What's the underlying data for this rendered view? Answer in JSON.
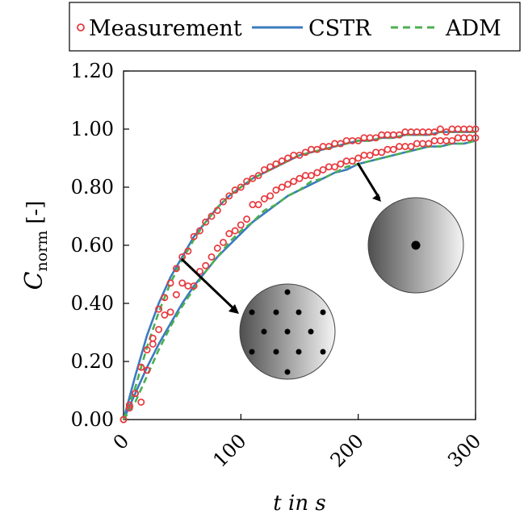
{
  "chart_data": {
    "type": "line",
    "xlabel": "t in s",
    "ylabel": "C_norm [-]",
    "ylabel_main": "C",
    "ylabel_sub": "norm",
    "ylabel_unit": "[-]",
    "xlim": [
      0,
      300
    ],
    "ylim": [
      0,
      1.2
    ],
    "xticks": [
      0,
      100,
      200,
      300
    ],
    "xtick_labels": [
      "0",
      "100",
      "200",
      "300"
    ],
    "yticks": [
      0,
      0.2,
      0.4,
      0.6,
      0.8,
      1.0,
      1.2
    ],
    "ytick_labels": [
      "0.00",
      "0.20",
      "0.40",
      "0.60",
      "0.80",
      "1.00",
      "1.20"
    ],
    "grid": false,
    "legend_position": "top (outside plot)",
    "legend": [
      "Measurement",
      "CSTR",
      "ADM"
    ],
    "colors": {
      "measurement": "#e8383d",
      "cstr": "#3b7bbf",
      "adm": "#4caf50"
    },
    "series": [
      {
        "name": "Measurement",
        "style": "markers",
        "curve": "single inlet",
        "x": [
          0,
          5,
          10,
          15,
          20,
          25,
          30,
          35,
          40,
          45,
          50,
          55,
          60,
          65,
          70,
          75,
          80,
          85,
          90,
          95,
          100,
          105,
          110,
          115,
          120,
          125,
          130,
          135,
          140,
          145,
          150,
          155,
          160,
          165,
          170,
          175,
          180,
          185,
          190,
          195,
          200,
          205,
          210,
          215,
          220,
          225,
          230,
          235,
          240,
          245,
          250,
          255,
          260,
          265,
          270,
          275,
          280,
          285,
          290,
          295,
          300
        ],
        "values": [
          0.0,
          0.04,
          0.09,
          0.06,
          0.17,
          0.26,
          0.31,
          0.36,
          0.37,
          0.43,
          0.47,
          0.46,
          0.46,
          0.51,
          0.53,
          0.56,
          0.59,
          0.61,
          0.64,
          0.65,
          0.67,
          0.69,
          0.74,
          0.74,
          0.76,
          0.77,
          0.79,
          0.8,
          0.81,
          0.82,
          0.83,
          0.84,
          0.84,
          0.85,
          0.86,
          0.87,
          0.87,
          0.88,
          0.89,
          0.89,
          0.9,
          0.91,
          0.91,
          0.92,
          0.92,
          0.93,
          0.93,
          0.94,
          0.94,
          0.94,
          0.95,
          0.95,
          0.95,
          0.96,
          0.96,
          0.96,
          0.96,
          0.97,
          0.97,
          0.97,
          0.97
        ]
      },
      {
        "name": "Measurement",
        "style": "markers",
        "curve": "distributed inlets",
        "x": [
          0,
          5,
          10,
          15,
          20,
          25,
          30,
          35,
          40,
          45,
          50,
          55,
          60,
          65,
          70,
          75,
          80,
          85,
          90,
          95,
          100,
          105,
          110,
          115,
          120,
          125,
          130,
          135,
          140,
          145,
          150,
          155,
          160,
          165,
          170,
          175,
          180,
          185,
          190,
          195,
          200,
          205,
          210,
          215,
          220,
          225,
          230,
          235,
          240,
          245,
          250,
          255,
          260,
          265,
          270,
          275,
          280,
          285,
          290,
          295,
          300
        ],
        "values": [
          0.0,
          0.05,
          0.09,
          0.18,
          0.24,
          0.28,
          0.38,
          0.42,
          0.47,
          0.52,
          0.56,
          0.58,
          0.63,
          0.65,
          0.68,
          0.7,
          0.72,
          0.75,
          0.77,
          0.79,
          0.8,
          0.82,
          0.83,
          0.84,
          0.86,
          0.87,
          0.88,
          0.89,
          0.9,
          0.91,
          0.91,
          0.92,
          0.93,
          0.93,
          0.94,
          0.94,
          0.95,
          0.95,
          0.96,
          0.96,
          0.96,
          0.97,
          0.97,
          0.97,
          0.98,
          0.98,
          0.98,
          0.98,
          0.99,
          0.99,
          0.99,
          0.99,
          0.99,
          0.99,
          1.0,
          0.99,
          1.0,
          1.0,
          1.0,
          1.0,
          1.0
        ]
      },
      {
        "name": "CSTR",
        "style": "solid",
        "curve": "single inlet",
        "x": [
          0,
          10,
          20,
          30,
          40,
          50,
          60,
          70,
          80,
          90,
          100,
          110,
          120,
          130,
          140,
          150,
          160,
          170,
          180,
          190,
          200,
          210,
          220,
          230,
          240,
          250,
          260,
          270,
          280,
          290,
          300
        ],
        "values": [
          0.0,
          0.09,
          0.18,
          0.26,
          0.33,
          0.4,
          0.46,
          0.51,
          0.56,
          0.6,
          0.64,
          0.68,
          0.71,
          0.74,
          0.77,
          0.79,
          0.81,
          0.83,
          0.85,
          0.86,
          0.88,
          0.89,
          0.9,
          0.91,
          0.92,
          0.93,
          0.94,
          0.94,
          0.95,
          0.95,
          0.96
        ]
      },
      {
        "name": "CSTR",
        "style": "solid",
        "curve": "distributed inlets",
        "x": [
          0,
          10,
          20,
          30,
          40,
          50,
          60,
          70,
          80,
          90,
          100,
          110,
          120,
          130,
          140,
          150,
          160,
          170,
          180,
          190,
          200,
          210,
          220,
          230,
          240,
          250,
          260,
          270,
          280,
          290,
          300
        ],
        "values": [
          0.0,
          0.15,
          0.29,
          0.4,
          0.49,
          0.56,
          0.63,
          0.68,
          0.73,
          0.77,
          0.8,
          0.83,
          0.85,
          0.87,
          0.89,
          0.91,
          0.92,
          0.93,
          0.94,
          0.95,
          0.96,
          0.96,
          0.97,
          0.97,
          0.98,
          0.98,
          0.98,
          0.99,
          0.99,
          0.99,
          0.99
        ]
      },
      {
        "name": "ADM",
        "style": "dashed",
        "curve": "single inlet",
        "x": [
          0,
          10,
          20,
          30,
          40,
          50,
          60,
          70,
          80,
          90,
          100,
          110,
          120,
          130,
          140,
          150,
          160,
          170,
          180,
          190,
          200,
          210,
          220,
          230,
          240,
          250,
          260,
          270,
          280,
          290,
          300
        ],
        "values": [
          0.0,
          0.06,
          0.15,
          0.24,
          0.32,
          0.39,
          0.45,
          0.51,
          0.56,
          0.61,
          0.65,
          0.68,
          0.72,
          0.74,
          0.77,
          0.79,
          0.82,
          0.83,
          0.85,
          0.87,
          0.88,
          0.89,
          0.9,
          0.91,
          0.92,
          0.93,
          0.94,
          0.94,
          0.95,
          0.95,
          0.96
        ]
      },
      {
        "name": "ADM",
        "style": "dashed",
        "curve": "distributed inlets",
        "x": [
          0,
          10,
          20,
          30,
          40,
          50,
          60,
          70,
          80,
          90,
          100,
          110,
          120,
          130,
          140,
          150,
          160,
          170,
          180,
          190,
          200,
          210,
          220,
          230,
          240,
          250,
          260,
          270,
          280,
          290,
          300
        ],
        "values": [
          0.0,
          0.11,
          0.25,
          0.37,
          0.47,
          0.55,
          0.62,
          0.68,
          0.73,
          0.77,
          0.8,
          0.83,
          0.85,
          0.87,
          0.89,
          0.91,
          0.92,
          0.93,
          0.94,
          0.95,
          0.96,
          0.96,
          0.97,
          0.97,
          0.98,
          0.98,
          0.98,
          0.99,
          0.99,
          0.99,
          0.99
        ]
      }
    ],
    "annotations": [
      {
        "name": "single-inlet-disc",
        "points_to": [
          205,
          0.88
        ],
        "description_icon": "shaded disc with single center dot"
      },
      {
        "name": "multi-inlet-disc",
        "points_to": [
          48,
          0.55
        ],
        "description_icon": "shaded disc with 13 dots"
      }
    ]
  }
}
